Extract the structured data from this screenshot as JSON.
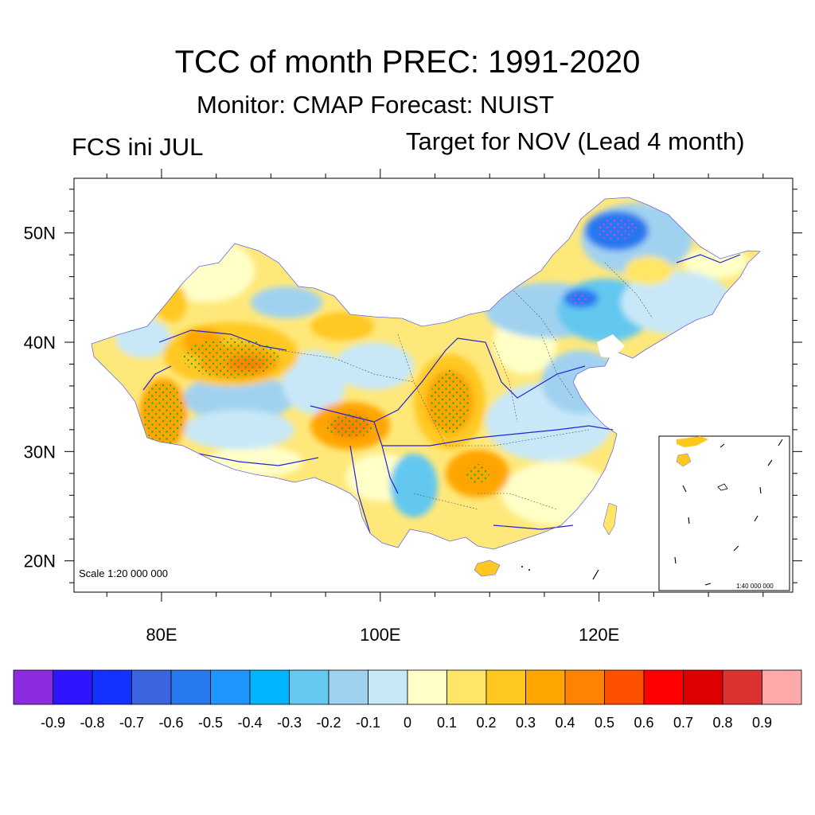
{
  "title": "TCC of month PREC: 1991-2020",
  "subtitle": "Monitor: CMAP   Forecast: NUIST",
  "left_label": "FCS ini JUL",
  "right_label": "Target for NOV (Lead 4 month)",
  "scale_main": "Scale 1:20 000 000",
  "scale_inset": "1:40 000 000",
  "map": {
    "lon_range": [
      72,
      138
    ],
    "lat_range": [
      17,
      55
    ],
    "x_ticks": [
      {
        "value": 80,
        "label": "80E"
      },
      {
        "value": 100,
        "label": "100E"
      },
      {
        "value": 120,
        "label": "120E"
      }
    ],
    "y_ticks": [
      {
        "value": 50,
        "label": "50N"
      },
      {
        "value": 40,
        "label": "40N"
      },
      {
        "value": 30,
        "label": "30N"
      },
      {
        "value": 20,
        "label": "20N"
      }
    ]
  },
  "colorbar": {
    "colors": [
      "#8a2be2",
      "#2e14ff",
      "#1432ff",
      "#3c64e0",
      "#2878f0",
      "#1e96ff",
      "#00b4ff",
      "#64c8f0",
      "#a0d2f0",
      "#c8e8f8",
      "#ffffc8",
      "#ffe664",
      "#ffc820",
      "#ffa500",
      "#ff8200",
      "#ff5000",
      "#ff0000",
      "#dc0000",
      "#dc3232",
      "#ffaaaa"
    ],
    "labels": [
      "-0.9",
      "-0.8",
      "-0.7",
      "-0.6",
      "-0.5",
      "-0.4",
      "-0.3",
      "-0.2",
      "-0.1",
      "0",
      "0.1",
      "0.2",
      "0.3",
      "0.4",
      "0.5",
      "0.6",
      "0.7",
      "0.8",
      "0.9"
    ]
  },
  "colors": {
    "land_base": "#fff3b0",
    "river": "#2323d6",
    "stipple_positive": "#20b020",
    "stipple_negative": "#e040e0"
  }
}
